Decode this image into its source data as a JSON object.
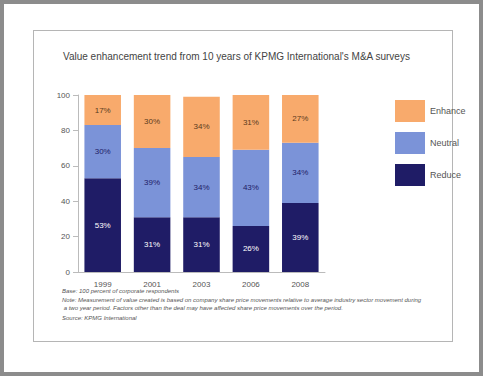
{
  "chart_data": {
    "type": "bar",
    "title": "Value enhancement trend from 10 years of KPMG International's M&A surveys",
    "categories": [
      "1999",
      "2001",
      "2003",
      "2006",
      "2008"
    ],
    "series": [
      {
        "name": "Reduce",
        "color": "#1f1c66",
        "values": [
          53,
          31,
          31,
          26,
          39
        ],
        "value_labels": [
          "53%",
          "31%",
          "31%",
          "26%",
          "39%"
        ]
      },
      {
        "name": "Neutral",
        "color": "#7b93d8",
        "values": [
          30,
          39,
          34,
          43,
          34
        ],
        "value_labels": [
          "30%",
          "39%",
          "34%",
          "43%",
          "34%"
        ]
      },
      {
        "name": "Enhance",
        "color": "#f8aa6c",
        "values": [
          17,
          30,
          34,
          31,
          27
        ],
        "value_labels": [
          "17%",
          "30%",
          "34%",
          "31%",
          "27%"
        ]
      }
    ],
    "ylim": [
      0,
      100
    ],
    "yticks": [
      0,
      20,
      40,
      60,
      80,
      100
    ],
    "stacked": true,
    "data_labels": true,
    "grid": false,
    "legend": "right",
    "annotations": [
      "Base: 100 percent of corporate respondents",
      "Note: Measurement of value created is based on company share price movements relative to average industry sector movement during a two year period. Factors other than the deal may have affected share price movements over the period.",
      "Source: KPMG International"
    ]
  }
}
